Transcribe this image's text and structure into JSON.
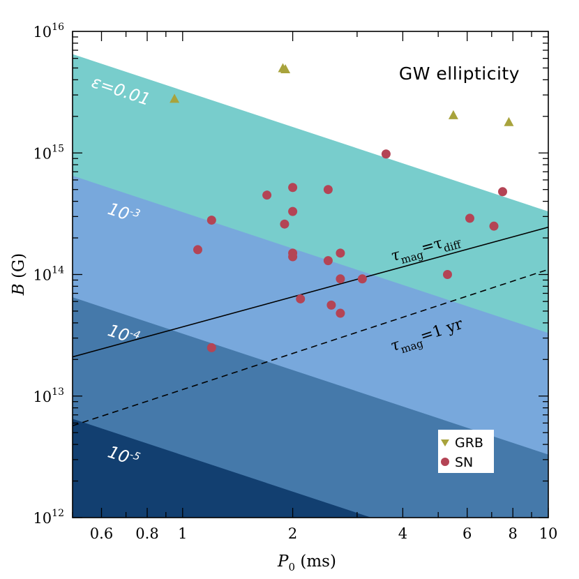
{
  "chart_data": {
    "type": "scatter",
    "title": "GW ellipticity",
    "xlabel_symbol": "P",
    "xlabel_sub": "0",
    "xlabel_unit": " (ms)",
    "ylabel_symbol": "B",
    "ylabel_unit": " (G)",
    "xscale": "log",
    "yscale": "log",
    "xlim": [
      0.5,
      10
    ],
    "ylim": [
      1000000000000.0,
      1e+16
    ],
    "x_ticks": [
      {
        "value": 0.6,
        "label": "0.6"
      },
      {
        "value": 0.8,
        "label": "0.8"
      },
      {
        "value": 1,
        "label": "1"
      },
      {
        "value": 2,
        "label": "2"
      },
      {
        "value": 4,
        "label": "4"
      },
      {
        "value": 6,
        "label": "6"
      },
      {
        "value": 8,
        "label": "8"
      },
      {
        "value": 10,
        "label": "10"
      }
    ],
    "y_ticks": [
      {
        "value": 1000000000000.0,
        "base": "10",
        "exp": "12"
      },
      {
        "value": 10000000000000.0,
        "base": "10",
        "exp": "13"
      },
      {
        "value": 100000000000000.0,
        "base": "10",
        "exp": "14"
      },
      {
        "value": 1000000000000000.0,
        "base": "10",
        "exp": "15"
      },
      {
        "value": 1e+16,
        "base": "10",
        "exp": "16"
      }
    ],
    "bands": [
      {
        "label": "ε=0.01",
        "B_at_P0_0p5": 6500000000000000.0,
        "B_at_P0_10": 330000000000000.0,
        "color": "#78cdcc"
      },
      {
        "label_base": "10",
        "label_exp": "-3",
        "B_at_P0_0p5": 650000000000000.0,
        "B_at_P0_10": 33000000000000.0,
        "color": "#78a8dc"
      },
      {
        "label_base": "10",
        "label_exp": "-4",
        "B_at_P0_0p5": 65000000000000.0,
        "B_at_P0_10": 3300000000000.0,
        "color": "#4579aa"
      },
      {
        "label_base": "10",
        "label_exp": "-5",
        "B_at_P0_0p5": 6500000000000.0,
        "B_at_P0_10": 330000000000.0,
        "color": "#123f70"
      }
    ],
    "lines": [
      {
        "name_sym": "τ",
        "name_sub": "mag",
        "name_eq": "=τ",
        "name_sub2": "diff",
        "style": "solid",
        "points": [
          [
            0.5,
            21000000000000.0
          ],
          [
            10,
            245000000000000.0
          ]
        ]
      },
      {
        "name_sym": "τ",
        "name_sub": "mag",
        "name_eq": "=1 yr",
        "name_sub2": "",
        "style": "dashed",
        "points": [
          [
            0.5,
            5700000000000.0
          ],
          [
            10,
            110000000000000.0
          ]
        ]
      }
    ],
    "series": [
      {
        "name": "GRB",
        "marker": "triangle",
        "color": "#a8a33c",
        "points": [
          [
            0.95,
            2800000000000000.0
          ],
          [
            1.88,
            5000000000000000.0
          ],
          [
            1.91,
            4900000000000000.0
          ],
          [
            5.5,
            2050000000000000.0
          ],
          [
            7.8,
            1800000000000000.0
          ]
        ]
      },
      {
        "name": "SN",
        "marker": "circle",
        "color": "#b44455",
        "points": [
          [
            3.6,
            980000000000000.0
          ],
          [
            1.7,
            450000000000000.0
          ],
          [
            2.0,
            520000000000000.0
          ],
          [
            2.5,
            500000000000000.0
          ],
          [
            1.2,
            280000000000000.0
          ],
          [
            2.0,
            330000000000000.0
          ],
          [
            1.9,
            260000000000000.0
          ],
          [
            1.1,
            160000000000000.0
          ],
          [
            2.0,
            150000000000000.0
          ],
          [
            2.0,
            140000000000000.0
          ],
          [
            2.5,
            130000000000000.0
          ],
          [
            2.7,
            150000000000000.0
          ],
          [
            2.7,
            92000000000000.0
          ],
          [
            3.1,
            92000000000000.0
          ],
          [
            2.1,
            63000000000000.0
          ],
          [
            2.55,
            56000000000000.0
          ],
          [
            2.7,
            48000000000000.0
          ],
          [
            1.2,
            25000000000000.0
          ],
          [
            5.3,
            100000000000000.0
          ],
          [
            6.1,
            290000000000000.0
          ],
          [
            7.1,
            250000000000000.0
          ],
          [
            7.5,
            480000000000000.0
          ]
        ]
      }
    ],
    "legend": {
      "placement": "bottom-right"
    }
  }
}
